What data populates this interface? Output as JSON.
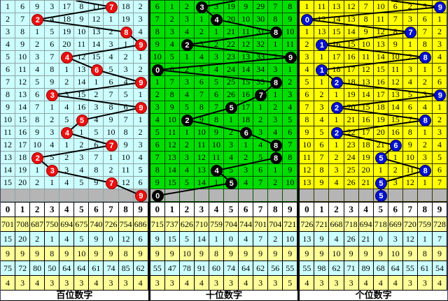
{
  "chart_data": {
    "type": "table",
    "title": "3D lottery digit trend chart (miss-count grid with drawn digits circled)",
    "digits": [
      "0",
      "1",
      "2",
      "3",
      "4",
      "5",
      "6",
      "7",
      "8",
      "9"
    ],
    "pending_row_bg": "#B5B5B5",
    "line_color": "#000000",
    "stat_keys": [
      "sum",
      "miss",
      "avg",
      "max_miss",
      "max_consec"
    ],
    "stat_row_bgs": [
      "#FFFF99",
      "#CCFFFF",
      "#FFFF99",
      "#CCFFFF",
      "#FFFF99"
    ],
    "panels": [
      {
        "footer": "百位数字",
        "cell_bg": "#CCFFFF",
        "grid_line": "#8FA4A4",
        "circle_color": "#E81010",
        "circle_border": "#A00000",
        "entry_col": 5.1,
        "rows": [
          [
            "1",
            "6",
            "9",
            "3",
            "17",
            "8",
            "11",
            "",
            "18",
            "2"
          ],
          [
            "2",
            "7",
            "",
            "4",
            "18",
            "9",
            "12",
            "1",
            "19",
            "3"
          ],
          [
            "3",
            "8",
            "1",
            "5",
            "19",
            "10",
            "13",
            "2",
            "",
            "4"
          ],
          [
            "4",
            "9",
            "2",
            "6",
            "20",
            "11",
            "14",
            "3",
            "1",
            ""
          ],
          [
            "5",
            "10",
            "3",
            "7",
            "",
            "12",
            "15",
            "4",
            "2",
            "1"
          ],
          [
            "6",
            "11",
            "4",
            "8",
            "1",
            "13",
            "",
            "5",
            "3",
            "2"
          ],
          [
            "7",
            "12",
            "5",
            "9",
            "2",
            "14",
            "1",
            "6",
            "4",
            ""
          ],
          [
            "8",
            "13",
            "6",
            "",
            "3",
            "15",
            "2",
            "7",
            "5",
            "1"
          ],
          [
            "9",
            "14",
            "7",
            "1",
            "4",
            "16",
            "3",
            "8",
            "6",
            ""
          ],
          [
            "10",
            "15",
            "8",
            "2",
            "5",
            "",
            "4",
            "9",
            "7",
            "1"
          ],
          [
            "11",
            "16",
            "9",
            "3",
            "",
            "1",
            "5",
            "10",
            "8",
            "2"
          ],
          [
            "12",
            "17",
            "10",
            "4",
            "1",
            "2",
            "6",
            "",
            "9",
            "3"
          ],
          [
            "13",
            "18",
            "",
            "5",
            "2",
            "3",
            "7",
            "1",
            "10",
            "4"
          ],
          [
            "14",
            "19",
            "1",
            "",
            "3",
            "4",
            "8",
            "2",
            "11",
            "5"
          ],
          [
            "15",
            "20",
            "2",
            "1",
            "4",
            "5",
            "9",
            "",
            "12",
            "6"
          ]
        ],
        "hits": [
          7,
          2,
          8,
          9,
          4,
          6,
          9,
          3,
          9,
          5,
          4,
          7,
          2,
          3,
          7
        ],
        "next_hit": 9,
        "stats": {
          "sum": [
            "701",
            "708",
            "687",
            "750",
            "694",
            "675",
            "740",
            "726",
            "754",
            "686"
          ],
          "miss": [
            "15",
            "20",
            "2",
            "1",
            "4",
            "5",
            "9",
            "0",
            "12",
            "6"
          ],
          "avg": [
            "9",
            "9",
            "9",
            "8",
            "9",
            "10",
            "9",
            "9",
            "8",
            "9"
          ],
          "max_miss": [
            "75",
            "72",
            "80",
            "50",
            "64",
            "64",
            "61",
            "74",
            "85",
            "62"
          ],
          "max_consec": [
            "4",
            "3",
            "4",
            "3",
            "3",
            "3",
            "4",
            "3",
            "3",
            "4"
          ]
        }
      },
      {
        "footer": "十位数字",
        "cell_bg": "#00DD00",
        "grid_line": "#005500",
        "circle_color": "#000000",
        "circle_border": "#000000",
        "entry_col": 5.75,
        "rows": [
          [
            "6",
            "1",
            "2",
            "",
            "3",
            "19",
            "9",
            "29",
            "7",
            "8"
          ],
          [
            "7",
            "2",
            "3",
            "1",
            "",
            "20",
            "10",
            "30",
            "8",
            "9"
          ],
          [
            "8",
            "3",
            "4",
            "2",
            "1",
            "21",
            "11",
            "31",
            "",
            "10"
          ],
          [
            "9",
            "4",
            "",
            "3",
            "2",
            "22",
            "12",
            "32",
            "1",
            "11"
          ],
          [
            "10",
            "5",
            "1",
            "4",
            "3",
            "23",
            "13",
            "33",
            "2",
            ""
          ],
          [
            "",
            "6",
            "2",
            "5",
            "4",
            "24",
            "14",
            "34",
            "3",
            "1"
          ],
          [
            "1",
            "7",
            "3",
            "6",
            "5",
            "25",
            "15",
            "35",
            "",
            "2"
          ],
          [
            "2",
            "8",
            "4",
            "7",
            "6",
            "26",
            "16",
            "",
            "1",
            "3"
          ],
          [
            "3",
            "9",
            "5",
            "8",
            "7",
            "",
            "17",
            "1",
            "2",
            "4"
          ],
          [
            "4",
            "10",
            "",
            "9",
            "8",
            "1",
            "18",
            "2",
            "3",
            "5"
          ],
          [
            "5",
            "11",
            "1",
            "10",
            "9",
            "2",
            "",
            "3",
            "4",
            "6"
          ],
          [
            "6",
            "12",
            "2",
            "11",
            "10",
            "3",
            "1",
            "4",
            "",
            "7"
          ],
          [
            "7",
            "13",
            "3",
            "12",
            "11",
            "4",
            "2",
            "5",
            "",
            "8"
          ],
          [
            "8",
            "14",
            "4",
            "13",
            "",
            "5",
            "3",
            "6",
            "1",
            "9"
          ],
          [
            "9",
            "15",
            "5",
            "14",
            "1",
            "",
            "4",
            "7",
            "2",
            "10"
          ]
        ],
        "hits": [
          3,
          4,
          8,
          2,
          9,
          0,
          8,
          7,
          5,
          2,
          6,
          8,
          8,
          4,
          5
        ],
        "next_hit": 0,
        "stats": {
          "sum": [
            "715",
            "737",
            "626",
            "710",
            "759",
            "704",
            "744",
            "701",
            "704",
            "721"
          ],
          "miss": [
            "9",
            "15",
            "5",
            "14",
            "1",
            "0",
            "4",
            "7",
            "2",
            "10"
          ],
          "avg": [
            "9",
            "9",
            "10",
            "9",
            "8",
            "9",
            "9",
            "9",
            "9",
            "9"
          ],
          "max_miss": [
            "55",
            "47",
            "78",
            "91",
            "60",
            "74",
            "64",
            "62",
            "56",
            "55"
          ],
          "max_consec": [
            "3",
            "3",
            "4",
            "4",
            "3",
            "3",
            "4",
            "3",
            "3",
            "5"
          ]
        }
      },
      {
        "footer": "个位数字",
        "cell_bg": "#FFFF00",
        "grid_line": "#333300",
        "circle_color": "#0011CC",
        "circle_border": "#000066",
        "entry_col": 6.2,
        "rows": [
          [
            "1",
            "11",
            "13",
            "12",
            "7",
            "10",
            "6",
            "2",
            "5",
            ""
          ],
          [
            "",
            "12",
            "14",
            "13",
            "8",
            "11",
            "7",
            "3",
            "6",
            "1"
          ],
          [
            "1",
            "13",
            "15",
            "14",
            "9",
            "12",
            "8",
            "",
            "7",
            "2"
          ],
          [
            "2",
            "",
            "16",
            "15",
            "10",
            "13",
            "9",
            "1",
            "8",
            "3"
          ],
          [
            "3",
            "1",
            "17",
            "16",
            "11",
            "14",
            "10",
            "2",
            "",
            "4"
          ],
          [
            "4",
            "",
            "18",
            "17",
            "12",
            "15",
            "11",
            "3",
            "1",
            "5"
          ],
          [
            "5",
            "1",
            "",
            "18",
            "13",
            "16",
            "12",
            "4",
            "2",
            "6"
          ],
          [
            "6",
            "2",
            "1",
            "19",
            "14",
            "17",
            "13",
            "5",
            "3",
            ""
          ],
          [
            "7",
            "3",
            "",
            "20",
            "15",
            "18",
            "14",
            "6",
            "4",
            "1"
          ],
          [
            "8",
            "4",
            "1",
            "21",
            "16",
            "19",
            "15",
            "7",
            "",
            "2"
          ],
          [
            "9",
            "5",
            "",
            "22",
            "17",
            "20",
            "16",
            "8",
            "1",
            "3"
          ],
          [
            "10",
            "6",
            "1",
            "23",
            "18",
            "21",
            "",
            "9",
            "2",
            "4"
          ],
          [
            "11",
            "7",
            "2",
            "24",
            "19",
            "",
            "1",
            "10",
            "3",
            "5"
          ],
          [
            "12",
            "8",
            "3",
            "25",
            "20",
            "1",
            "2",
            "11",
            "",
            "6"
          ],
          [
            "13",
            "9",
            "4",
            "26",
            "21",
            "",
            "3",
            "12",
            "1",
            "7"
          ]
        ],
        "hits": [
          9,
          0,
          7,
          1,
          8,
          1,
          2,
          9,
          2,
          8,
          2,
          6,
          5,
          8,
          5
        ],
        "next_hit": 5,
        "stats": {
          "sum": [
            "726",
            "721",
            "668",
            "718",
            "694",
            "718",
            "669",
            "720",
            "759",
            "728"
          ],
          "miss": [
            "13",
            "9",
            "4",
            "26",
            "21",
            "0",
            "3",
            "12",
            "1",
            "7"
          ],
          "avg": [
            "9",
            "9",
            "10",
            "9",
            "9",
            "9",
            "10",
            "9",
            "8",
            "9"
          ],
          "max_miss": [
            "55",
            "98",
            "62",
            "71",
            "89",
            "68",
            "64",
            "55",
            "61",
            "54"
          ],
          "max_consec": [
            "4",
            "3",
            "3",
            "3",
            "4",
            "4",
            "4",
            "3",
            "3",
            "4"
          ]
        }
      }
    ]
  }
}
